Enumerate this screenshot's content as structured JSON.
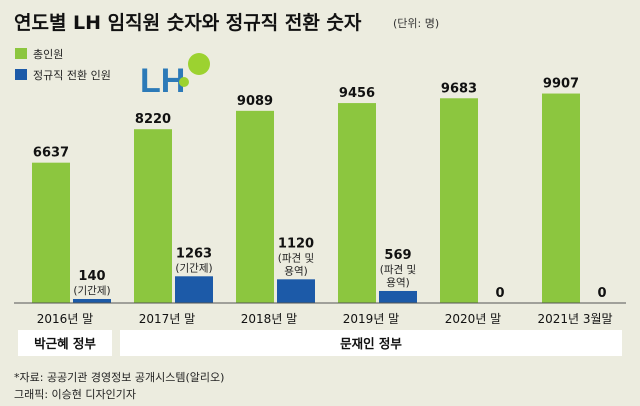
{
  "chart_data": {
    "type": "bar",
    "title": "연도별 LH 임직원 숫자와 정규직 전환 숫자",
    "unit": "(단위: 명)",
    "categories": [
      "2016년 말",
      "2017년 말",
      "2018년 말",
      "2019년 말",
      "2020년 말",
      "2021년 3월말"
    ],
    "series": [
      {
        "name": "총인원",
        "color": "#8cc63f",
        "values": [
          6637,
          8220,
          9089,
          9456,
          9683,
          9907
        ]
      },
      {
        "name": "정규직 전환 인원",
        "color": "#1c5aa8",
        "values": [
          140,
          1263,
          1120,
          569,
          0,
          0
        ]
      }
    ],
    "series_notes": [
      [
        "",
        "",
        "",
        "",
        "",
        ""
      ],
      [
        "(기간제)",
        "(기간제)",
        "(파견 및|용역)",
        "(파견 및|용역)",
        "",
        ""
      ]
    ],
    "ylim": [
      0,
      10500
    ],
    "governments": [
      {
        "label": "박근혜 정부",
        "categories": [
          0
        ]
      },
      {
        "label": "문재인 정부",
        "categories": [
          1,
          2,
          3,
          4,
          5
        ]
      }
    ]
  },
  "logo": {
    "text": "LH",
    "color": "#2c7ab8",
    "leaf_color": "#9cd230"
  },
  "footer": {
    "source": "*자료: 공공기관 경영정보 공개시스템(알리오)",
    "credit": "그래픽: 이승현 디자인기자"
  }
}
